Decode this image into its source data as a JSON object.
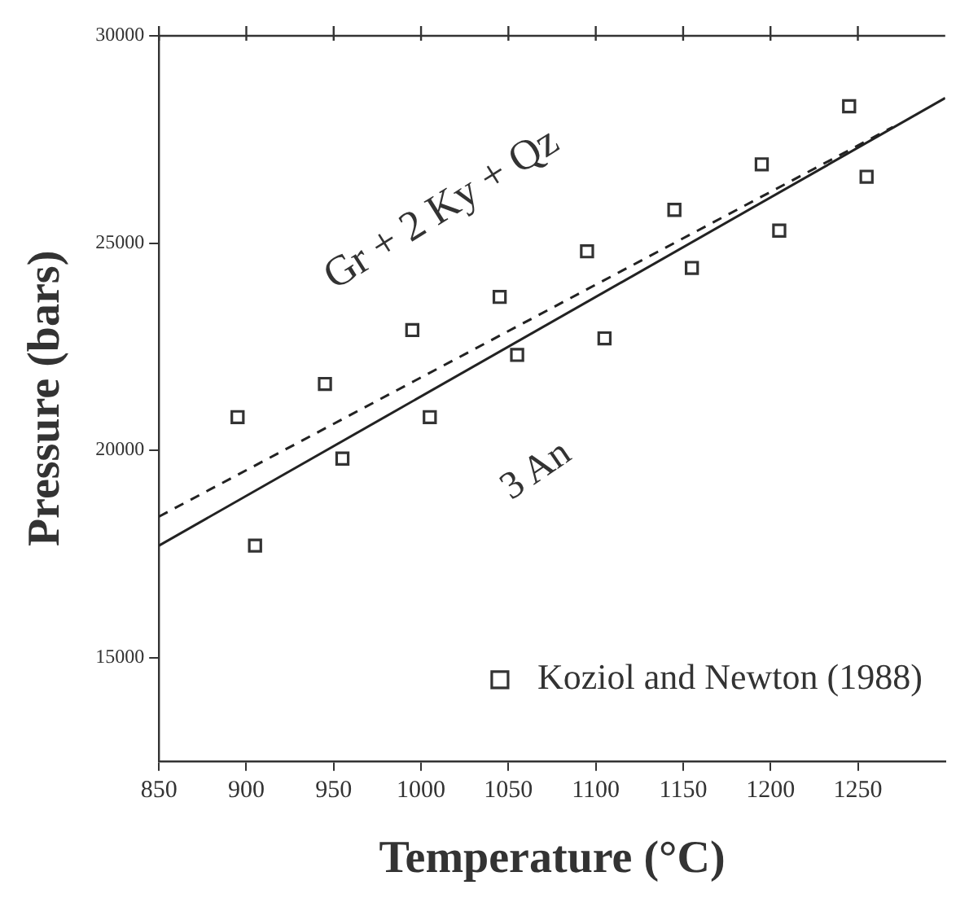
{
  "chart_data": {
    "type": "scatter",
    "xlabel": "Temperature (°C)",
    "ylabel": "Pressure (bars)",
    "xlim": [
      850,
      1300
    ],
    "ylim": [
      12500,
      30000
    ],
    "xticks": [
      850,
      900,
      950,
      1000,
      1050,
      1100,
      1150,
      1200,
      1250
    ],
    "yticks": [
      15000,
      20000,
      25000,
      30000
    ],
    "grid": false,
    "legend": "bottom right",
    "marker": "square",
    "annotations": [
      "Gr + 2 Ky + Qz",
      "3 An"
    ],
    "series": [
      {
        "name": "Koziol and Newton (1988)",
        "color": "#333333",
        "x": [
          895,
          905,
          945,
          955,
          995,
          1005,
          1045,
          1055,
          1095,
          1105,
          1145,
          1155,
          1195,
          1205,
          1245,
          1255
        ],
        "values": [
          20800,
          17700,
          21600,
          19800,
          22900,
          20800,
          23700,
          22300,
          24800,
          22700,
          25800,
          24400,
          26900,
          25300,
          28300,
          26600
        ]
      },
      {
        "type": "line",
        "color": "#222222",
        "x": [
          850,
          1300
        ],
        "values": [
          17700,
          28500
        ],
        "line_style": "solid",
        "marker": "none"
      },
      {
        "type": "line",
        "color": "#222222",
        "x": [
          850,
          1270
        ],
        "values": [
          18400,
          27800
        ],
        "line_style": "dashed",
        "marker": "none"
      }
    ]
  }
}
